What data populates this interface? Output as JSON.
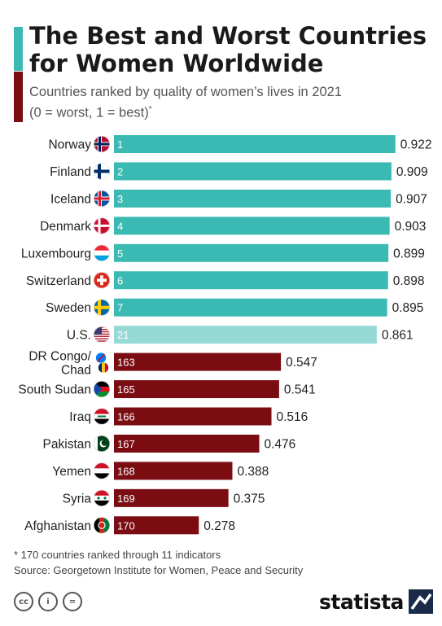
{
  "header": {
    "title": "The Best and Worst Countries\nfor Women Worldwide",
    "subtitle": "Countries ranked by quality of women’s lives in 2021\n(0 = worst, 1 = best)",
    "subtitle_mark": "*"
  },
  "chart_data": {
    "type": "bar",
    "orientation": "horizontal",
    "categories": [
      "Norway",
      "Finland",
      "Iceland",
      "Denmark",
      "Luxembourg",
      "Switzerland",
      "Sweden",
      "U.S.",
      "DR Congo/\nChad",
      "South Sudan",
      "Iraq",
      "Pakistan",
      "Yemen",
      "Syria",
      "Afghanistan"
    ],
    "ranks": [
      "1",
      "2",
      "3",
      "4",
      "5",
      "6",
      "7",
      "21",
      "163",
      "165",
      "166",
      "167",
      "168",
      "169",
      "170"
    ],
    "values": [
      0.922,
      0.909,
      0.907,
      0.903,
      0.899,
      0.898,
      0.895,
      0.861,
      0.547,
      0.541,
      0.516,
      0.476,
      0.388,
      0.375,
      0.278
    ],
    "value_labels": [
      "0.922",
      "0.909",
      "0.907",
      "0.903",
      "0.899",
      "0.898",
      "0.895",
      "0.861",
      "0.547",
      "0.541",
      "0.516",
      "0.476",
      "0.388",
      "0.375",
      "0.278"
    ],
    "groups": [
      "best",
      "best",
      "best",
      "best",
      "best",
      "best",
      "best",
      "us",
      "worst",
      "worst",
      "worst",
      "worst",
      "worst",
      "worst",
      "worst"
    ],
    "flags": [
      "norway-flag",
      "finland-flag",
      "iceland-flag",
      "denmark-flag",
      "luxembourg-flag",
      "switzerland-flag",
      "sweden-flag",
      "us-flag",
      "drc-chad-flags",
      "south-sudan-flag",
      "iraq-flag",
      "pakistan-flag",
      "yemen-flag",
      "syria-flag",
      "afghanistan-flag"
    ],
    "colors": {
      "best": "#3bbab3",
      "us": "#96d9d5",
      "worst": "#7a0c12"
    },
    "xlim": [
      0,
      1
    ]
  },
  "footer": {
    "footnote": "* 170 countries ranked through 11 indicators",
    "source": "Source: Georgetown Institute for Women, Peace and Security",
    "brand": "statista"
  },
  "icons": {
    "cc": "cc",
    "by": "i",
    "nd": "="
  }
}
